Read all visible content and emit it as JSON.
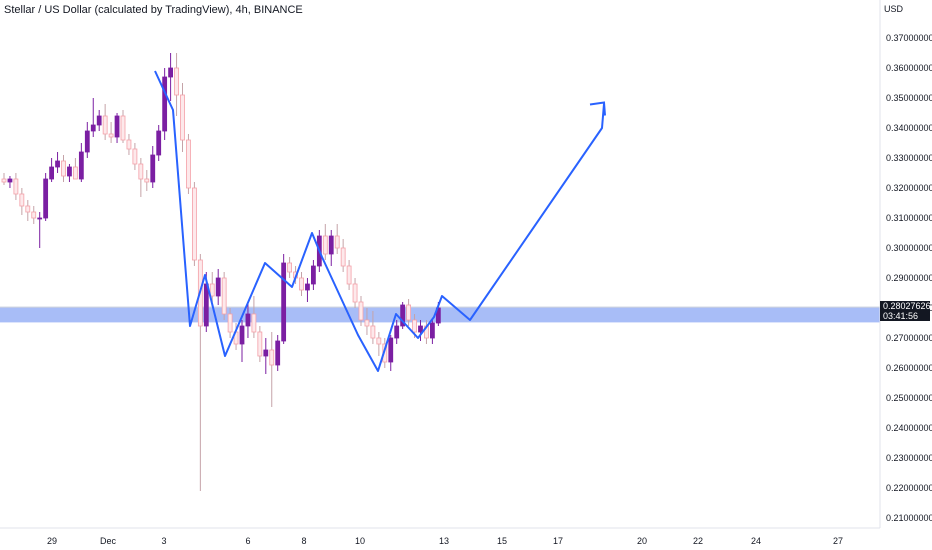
{
  "header": {
    "title": "Stellar / US Dollar (calculated by TradingView), 4h, BINANCE",
    "currency": "USD"
  },
  "price_label": {
    "value": "0.28027626",
    "countdown": "03:41:56"
  },
  "colors": {
    "bull": "#7b1fa2",
    "bear": "#f4a0a8",
    "drawing": "#2962ff",
    "zone": "#a8bdf7",
    "axis_text": "#131722"
  },
  "chart_data": {
    "type": "candlestick",
    "title": "Stellar / US Dollar (calculated by TradingView), 4h, BINANCE",
    "y_axis": {
      "label": "USD",
      "ticks": [
        "0.37000000",
        "0.36000000",
        "0.35000000",
        "0.34000000",
        "0.33000000",
        "0.32000000",
        "0.31000000",
        "0.30000000",
        "0.29000000",
        "0.28000000",
        "0.27000000",
        "0.26000000",
        "0.25000000",
        "0.24000000",
        "0.23000000",
        "0.22000000",
        "0.21000000"
      ],
      "range": [
        0.2055,
        0.3755
      ]
    },
    "x_axis": {
      "ticks": [
        "29",
        "Dec",
        "3",
        "6",
        "8",
        "10",
        "13",
        "15",
        "17",
        "20",
        "22",
        "24",
        "27"
      ],
      "range": [
        "Nov 27",
        "Dec 27"
      ]
    },
    "last_price": 0.28027626,
    "support_zone": [
      0.2752,
      0.2804
    ],
    "candles": [
      [
        0.323,
        0.325,
        0.321,
        0.322
      ],
      [
        0.322,
        0.324,
        0.32,
        0.323
      ],
      [
        0.323,
        0.325,
        0.316,
        0.318
      ],
      [
        0.318,
        0.32,
        0.311,
        0.314
      ],
      [
        0.314,
        0.316,
        0.309,
        0.312
      ],
      [
        0.312,
        0.314,
        0.308,
        0.31
      ],
      [
        0.31,
        0.312,
        0.3,
        0.31
      ],
      [
        0.31,
        0.325,
        0.309,
        0.323
      ],
      [
        0.323,
        0.33,
        0.322,
        0.327
      ],
      [
        0.327,
        0.332,
        0.325,
        0.329
      ],
      [
        0.329,
        0.331,
        0.322,
        0.324
      ],
      [
        0.324,
        0.328,
        0.322,
        0.327
      ],
      [
        0.327,
        0.33,
        0.323,
        0.323
      ],
      [
        0.323,
        0.335,
        0.322,
        0.332
      ],
      [
        0.332,
        0.342,
        0.33,
        0.339
      ],
      [
        0.339,
        0.35,
        0.337,
        0.341
      ],
      [
        0.341,
        0.346,
        0.339,
        0.344
      ],
      [
        0.344,
        0.348,
        0.336,
        0.338
      ],
      [
        0.338,
        0.342,
        0.335,
        0.337
      ],
      [
        0.337,
        0.345,
        0.335,
        0.344
      ],
      [
        0.344,
        0.346,
        0.335,
        0.336
      ],
      [
        0.336,
        0.338,
        0.331,
        0.333
      ],
      [
        0.333,
        0.335,
        0.326,
        0.328
      ],
      [
        0.328,
        0.33,
        0.317,
        0.323
      ],
      [
        0.323,
        0.326,
        0.319,
        0.322
      ],
      [
        0.322,
        0.334,
        0.32,
        0.331
      ],
      [
        0.331,
        0.341,
        0.329,
        0.339
      ],
      [
        0.339,
        0.36,
        0.336,
        0.357
      ],
      [
        0.357,
        0.365,
        0.349,
        0.36
      ],
      [
        0.36,
        0.365,
        0.344,
        0.351
      ],
      [
        0.351,
        0.355,
        0.332,
        0.336
      ],
      [
        0.336,
        0.338,
        0.318,
        0.32
      ],
      [
        0.32,
        0.322,
        0.294,
        0.296
      ],
      [
        0.296,
        0.298,
        0.219,
        0.274
      ],
      [
        0.274,
        0.292,
        0.272,
        0.288
      ],
      [
        0.288,
        0.292,
        0.282,
        0.284
      ],
      [
        0.284,
        0.293,
        0.281,
        0.29
      ],
      [
        0.29,
        0.292,
        0.276,
        0.278
      ],
      [
        0.278,
        0.28,
        0.27,
        0.272
      ],
      [
        0.272,
        0.275,
        0.266,
        0.268
      ],
      [
        0.268,
        0.276,
        0.262,
        0.274
      ],
      [
        0.274,
        0.282,
        0.27,
        0.278
      ],
      [
        0.278,
        0.284,
        0.27,
        0.272
      ],
      [
        0.272,
        0.274,
        0.262,
        0.264
      ],
      [
        0.264,
        0.27,
        0.258,
        0.266
      ],
      [
        0.266,
        0.272,
        0.247,
        0.261
      ],
      [
        0.261,
        0.271,
        0.259,
        0.269
      ],
      [
        0.269,
        0.298,
        0.268,
        0.295
      ],
      [
        0.295,
        0.297,
        0.29,
        0.292
      ],
      [
        0.292,
        0.294,
        0.288,
        0.29
      ],
      [
        0.29,
        0.292,
        0.284,
        0.286
      ],
      [
        0.286,
        0.29,
        0.282,
        0.288
      ],
      [
        0.288,
        0.296,
        0.286,
        0.294
      ],
      [
        0.294,
        0.306,
        0.292,
        0.304
      ],
      [
        0.304,
        0.308,
        0.296,
        0.298
      ],
      [
        0.298,
        0.306,
        0.294,
        0.304
      ],
      [
        0.304,
        0.308,
        0.298,
        0.3
      ],
      [
        0.3,
        0.303,
        0.292,
        0.294
      ],
      [
        0.294,
        0.296,
        0.286,
        0.288
      ],
      [
        0.288,
        0.29,
        0.28,
        0.282
      ],
      [
        0.282,
        0.284,
        0.274,
        0.276
      ],
      [
        0.276,
        0.28,
        0.271,
        0.274
      ],
      [
        0.274,
        0.279,
        0.268,
        0.27
      ],
      [
        0.27,
        0.272,
        0.264,
        0.268
      ],
      [
        0.268,
        0.27,
        0.26,
        0.262
      ],
      [
        0.262,
        0.271,
        0.259,
        0.27
      ],
      [
        0.27,
        0.276,
        0.268,
        0.274
      ],
      [
        0.274,
        0.282,
        0.273,
        0.281
      ],
      [
        0.281,
        0.283,
        0.274,
        0.276
      ],
      [
        0.276,
        0.278,
        0.27,
        0.272
      ],
      [
        0.272,
        0.276,
        0.269,
        0.274
      ],
      [
        0.274,
        0.276,
        0.268,
        0.27
      ],
      [
        0.27,
        0.276,
        0.268,
        0.275
      ],
      [
        0.275,
        0.282,
        0.274,
        0.28
      ]
    ],
    "drawing_path": [
      [
        0.359,
        0
      ],
      [
        0.346,
        3
      ],
      [
        0.274,
        10
      ],
      [
        0.291,
        12
      ],
      [
        0.264,
        19
      ],
      [
        0.295,
        24
      ],
      [
        0.287,
        28
      ],
      [
        0.305,
        32
      ],
      [
        0.297,
        35
      ],
      [
        0.271,
        43
      ],
      [
        0.259,
        47
      ],
      [
        0.278,
        51
      ],
      [
        0.27,
        55
      ],
      [
        0.277,
        57
      ],
      [
        0.284,
        61
      ],
      [
        0.276,
        67
      ],
      [
        0.34,
        85
      ],
      [
        0.348,
        86
      ]
    ]
  }
}
